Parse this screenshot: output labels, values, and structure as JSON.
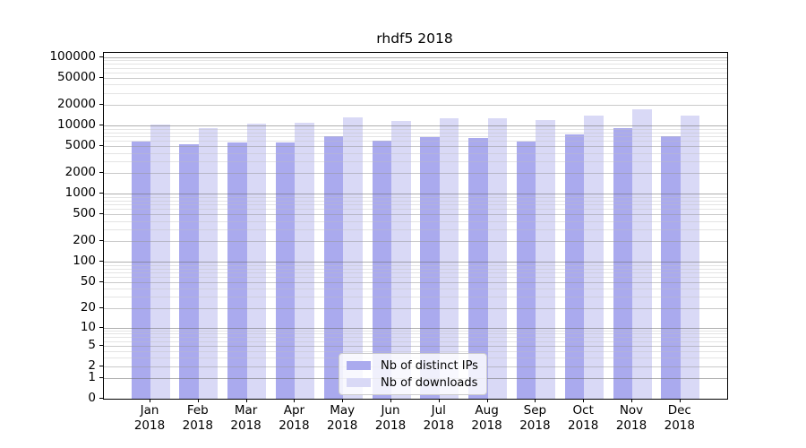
{
  "chart_data": {
    "type": "bar",
    "title": "rhdf5 2018",
    "categories": [
      "Jan",
      "Feb",
      "Mar",
      "Apr",
      "May",
      "Jun",
      "Jul",
      "Aug",
      "Sep",
      "Oct",
      "Nov",
      "Dec"
    ],
    "category_year": "2018",
    "series": [
      {
        "name": "Nb of distinct IPs",
        "color": "#aaaaee",
        "values": [
          5800,
          5300,
          5600,
          5700,
          7100,
          6100,
          6700,
          6600,
          5900,
          7400,
          9200,
          7000
        ]
      },
      {
        "name": "Nb of downloads",
        "color": "#d9d9f6",
        "values": [
          10500,
          9200,
          10700,
          11000,
          13300,
          11600,
          12700,
          13000,
          11900,
          13900,
          17300,
          13900
        ]
      }
    ],
    "xlabel": "",
    "ylabel": "",
    "y_axis": {
      "scale": "log10(value+1)",
      "tick_labels": [
        "100000",
        "50000",
        "20000",
        "10000",
        "5000",
        "2000",
        "1000",
        "500",
        "200",
        "100",
        "50",
        "20",
        "10",
        "5",
        "2",
        "1",
        "0"
      ],
      "tick_values": [
        100000,
        50000,
        20000,
        10000,
        5000,
        2000,
        1000,
        500,
        200,
        100,
        50,
        20,
        10,
        5,
        2,
        1,
        0
      ],
      "range": [
        0,
        120000
      ],
      "grid": "on"
    },
    "legend": {
      "position": "lower center",
      "entries": [
        "Nb of distinct IPs",
        "Nb of downloads"
      ]
    }
  }
}
